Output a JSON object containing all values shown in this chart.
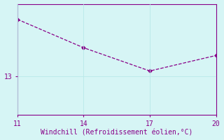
{
  "x": [
    11,
    14,
    17,
    20
  ],
  "y": [
    15.2,
    14.1,
    13.2,
    13.8
  ],
  "xticks": [
    11,
    14,
    17,
    20
  ],
  "yticks": [
    13
  ],
  "xlim": [
    11,
    20
  ],
  "ylim": [
    11.5,
    15.8
  ],
  "xlabel": "Windchill (Refroidissement éolien,°C)",
  "line_color": "#880088",
  "marker": "D",
  "marker_size": 2.5,
  "bg_color": "#d6f5f5",
  "grid_color": "#b8e8e8",
  "tick_color": "#880088",
  "label_color": "#880088",
  "font_family": "monospace",
  "tick_fontsize": 7,
  "label_fontsize": 7
}
